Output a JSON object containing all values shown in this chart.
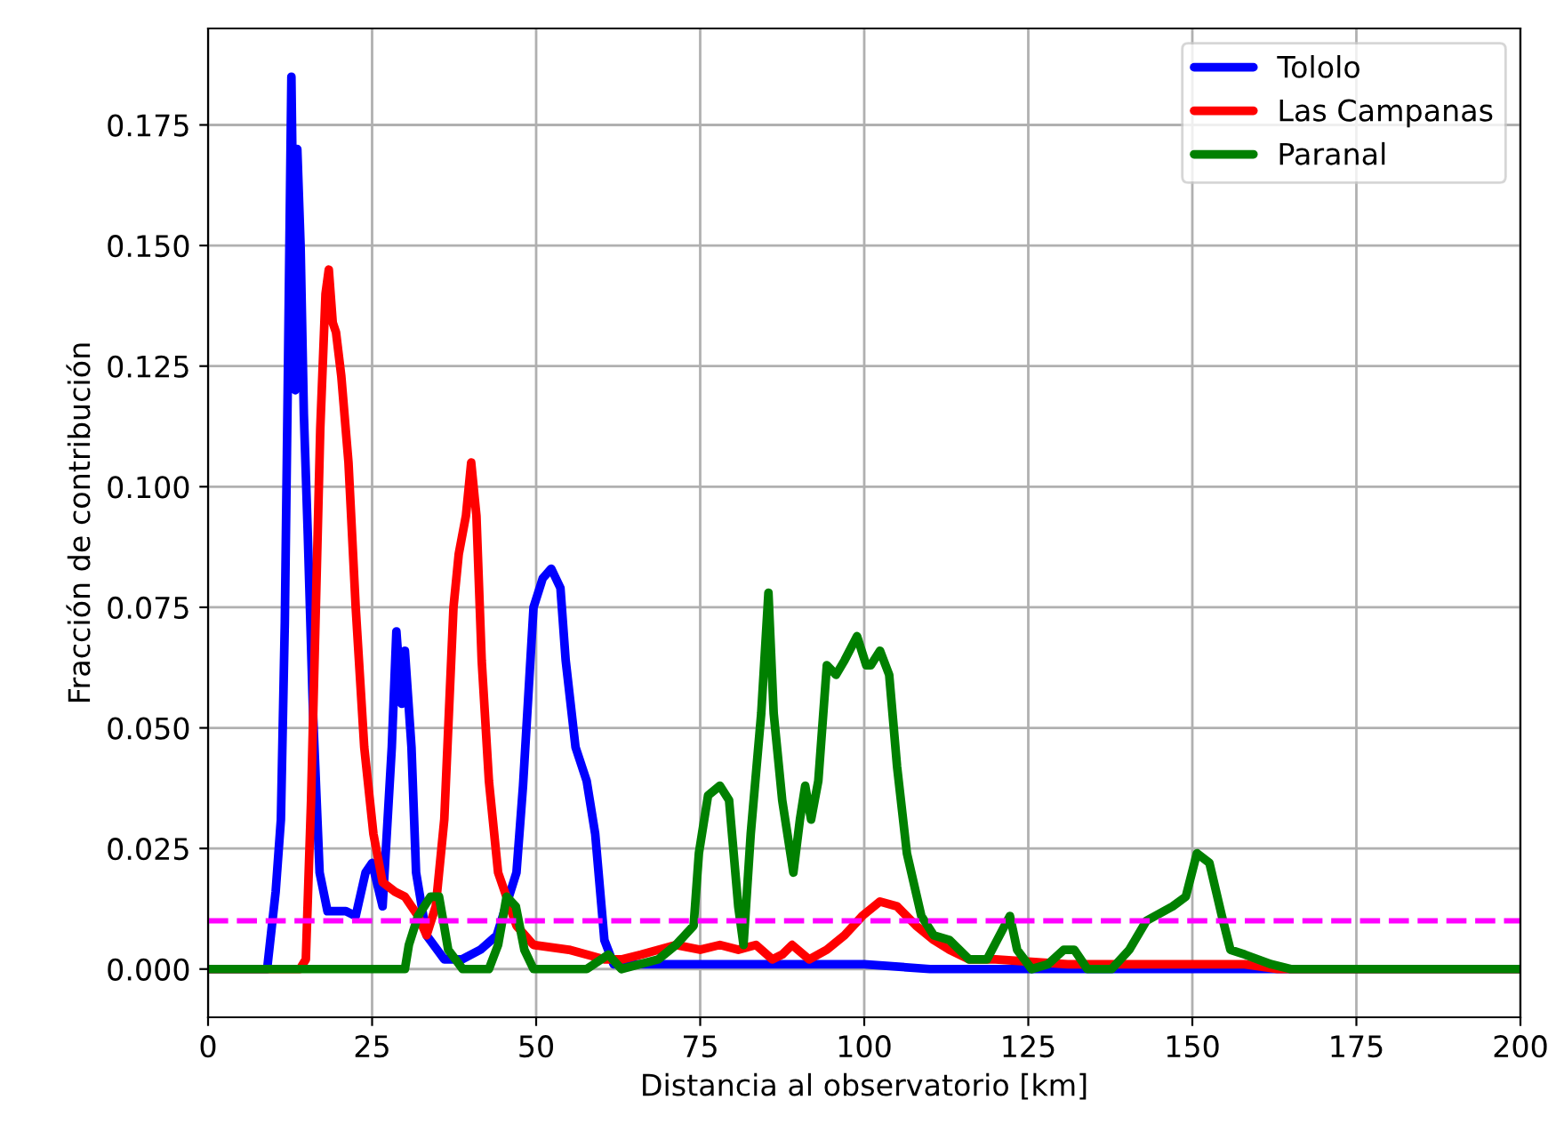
{
  "chart_data": {
    "type": "line",
    "xlabel": "Distancia al observatorio [km]",
    "ylabel": "Fracción de contribución",
    "xlim": [
      0,
      200
    ],
    "ylim": [
      -0.01,
      0.195
    ],
    "xticks": [
      0,
      25,
      50,
      75,
      100,
      125,
      150,
      175,
      200
    ],
    "yticks": [
      {
        "value": 0,
        "label": "0.000"
      },
      0.025,
      {
        "value": 0.05,
        "label": "0.050"
      },
      0.075,
      {
        "value": 0.1,
        "label": "0.100"
      },
      0.125,
      {
        "value": 0.15,
        "label": "0.150"
      },
      0.175
    ],
    "grid": true,
    "legend": "top right",
    "line_style": "solid",
    "marker": "none",
    "ref_lines": [
      {
        "axis": "y",
        "value": 0.01,
        "color": "#ff00ff",
        "line_style": "dashed"
      }
    ],
    "series": [
      {
        "name": "Tololo",
        "color": "#0000ff",
        "x": [
          0,
          8.5,
          9,
          10.3,
          11.1,
          11.7,
          12.2,
          12.7,
          13.3,
          13.6,
          14.1,
          14.6,
          15.2,
          16,
          17,
          18.2,
          21,
          22.5,
          24,
          25,
          26.6,
          28,
          28.7,
          29.5,
          30,
          31,
          31.7,
          33.3,
          36,
          38.7,
          41.5,
          44,
          47,
          48,
          49.6,
          51,
          52.3,
          53.7,
          54.5,
          56,
          57.7,
          59,
          60.4,
          61.8,
          66,
          75,
          100,
          110,
          200
        ],
        "values": [
          0,
          0,
          0,
          0.016,
          0.031,
          0.072,
          0.127,
          0.185,
          0.12,
          0.17,
          0.15,
          0.115,
          0.09,
          0.053,
          0.02,
          0.012,
          0.012,
          0.011,
          0.02,
          0.022,
          0.013,
          0.046,
          0.07,
          0.055,
          0.066,
          0.046,
          0.02,
          0.007,
          0.002,
          0.002,
          0.004,
          0.007,
          0.02,
          0.038,
          0.075,
          0.081,
          0.083,
          0.079,
          0.064,
          0.046,
          0.039,
          0.028,
          0.006,
          0.001,
          0.001,
          0.001,
          0.001,
          0,
          0
        ]
      },
      {
        "name": "Las Campanas",
        "color": "#ff0000",
        "x": [
          0,
          14,
          14.9,
          15.7,
          16.5,
          17.1,
          17.9,
          18.4,
          19,
          19.5,
          20.3,
          21.4,
          22.5,
          23.8,
          25.2,
          26.6,
          28.5,
          30,
          32,
          33.3,
          34.7,
          36,
          37.4,
          38.2,
          39.3,
          40.1,
          40.9,
          41.7,
          42.8,
          44.2,
          47,
          49.6,
          55,
          60.4,
          63,
          66,
          68.6,
          71.3,
          75,
          78,
          80.8,
          83.5,
          86,
          87.5,
          89,
          91.6,
          94.3,
          97,
          99.7,
          102.4,
          105,
          107.9,
          110.6,
          113,
          116,
          120,
          131,
          141.7,
          147,
          152.6,
          158,
          163,
          200
        ],
        "values": [
          0,
          0,
          0.002,
          0.035,
          0.079,
          0.112,
          0.14,
          0.145,
          0.134,
          0.132,
          0.123,
          0.105,
          0.075,
          0.046,
          0.028,
          0.018,
          0.016,
          0.015,
          0.011,
          0.007,
          0.013,
          0.031,
          0.075,
          0.086,
          0.094,
          0.105,
          0.094,
          0.064,
          0.039,
          0.02,
          0.009,
          0.005,
          0.004,
          0.002,
          0.002,
          0.003,
          0.004,
          0.005,
          0.004,
          0.005,
          0.004,
          0.005,
          0.002,
          0.003,
          0.005,
          0.002,
          0.004,
          0.007,
          0.011,
          0.014,
          0.013,
          0.009,
          0.006,
          0.004,
          0.002,
          0.002,
          0.001,
          0.001,
          0.001,
          0.001,
          0.001,
          0,
          0
        ]
      },
      {
        "name": "Paranal",
        "color": "#008000",
        "x": [
          0,
          30,
          30.6,
          32,
          33.9,
          35.2,
          36.6,
          38.8,
          42.8,
          44.2,
          45.5,
          46.9,
          48.2,
          49.6,
          57.7,
          61,
          63,
          68.6,
          71.3,
          74,
          74.8,
          76.2,
          78,
          79.4,
          80.8,
          81.6,
          82.7,
          84.3,
          85.4,
          86.2,
          87.5,
          89.2,
          90.2,
          91,
          91.9,
          93,
          94.3,
          95.7,
          97,
          98.9,
          100.3,
          101,
          102.4,
          103.8,
          105,
          106.5,
          108.7,
          110.6,
          113,
          116,
          118.7,
          121.4,
          122.2,
          123.3,
          125.5,
          128,
          130.4,
          132,
          134,
          137.7,
          140.4,
          143,
          147,
          149,
          150.7,
          152.6,
          154.5,
          155.8,
          158,
          162,
          165,
          200
        ],
        "values": [
          0,
          0,
          0.005,
          0.011,
          0.015,
          0.015,
          0.004,
          0,
          0,
          0.005,
          0.015,
          0.013,
          0.004,
          0,
          0,
          0.003,
          0,
          0.002,
          0.005,
          0.009,
          0.024,
          0.036,
          0.038,
          0.035,
          0.013,
          0.005,
          0.028,
          0.053,
          0.078,
          0.053,
          0.035,
          0.02,
          0.031,
          0.038,
          0.031,
          0.039,
          0.063,
          0.061,
          0.064,
          0.069,
          0.063,
          0.063,
          0.066,
          0.061,
          0.042,
          0.024,
          0.011,
          0.007,
          0.006,
          0.002,
          0.002,
          0.009,
          0.011,
          0.004,
          0,
          0.001,
          0.004,
          0.004,
          0,
          0,
          0.004,
          0.01,
          0.013,
          0.015,
          0.024,
          0.022,
          0.011,
          0.004,
          0.003,
          0.001,
          0,
          0
        ]
      }
    ]
  }
}
